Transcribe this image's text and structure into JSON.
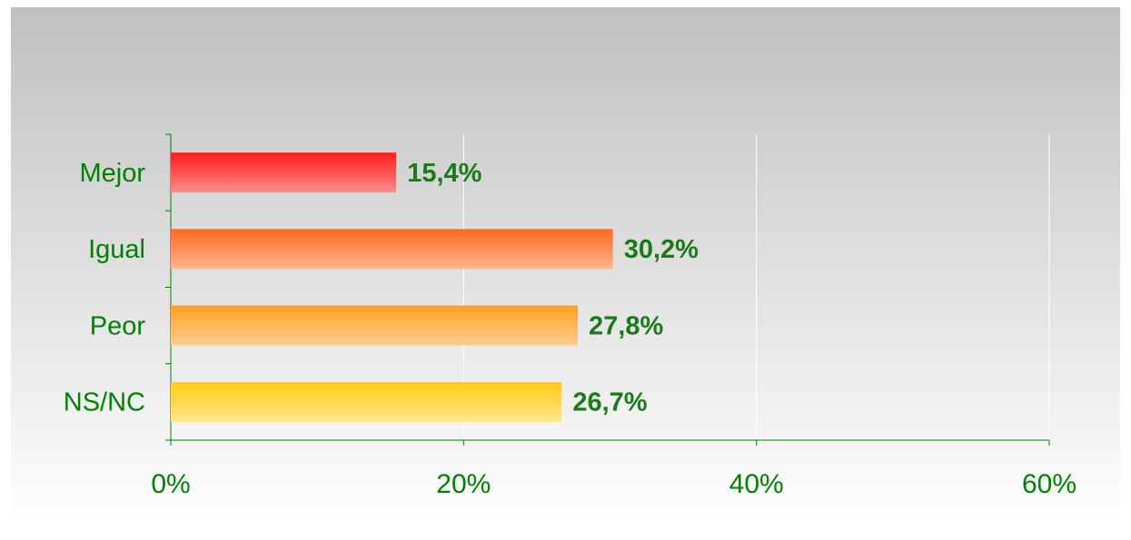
{
  "chart_data": {
    "type": "bar",
    "orientation": "horizontal",
    "categories": [
      "Mejor",
      "Igual",
      "Peor",
      "NS/NC"
    ],
    "values": [
      15.4,
      30.2,
      27.8,
      26.7
    ],
    "value_labels": [
      "15,4%",
      "30,2%",
      "27,8%",
      "26,7%"
    ],
    "colors": [
      "#ff1a1a",
      "#ff6a1f",
      "#ff9f1f",
      "#ffcc14"
    ],
    "xlim": [
      0,
      60
    ],
    "xticks": [
      {
        "value": 0,
        "label": "0%"
      },
      {
        "value": 20,
        "label": "20%"
      },
      {
        "value": 40,
        "label": "40%"
      },
      {
        "value": 60,
        "label": "60%"
      }
    ],
    "grid": true
  }
}
